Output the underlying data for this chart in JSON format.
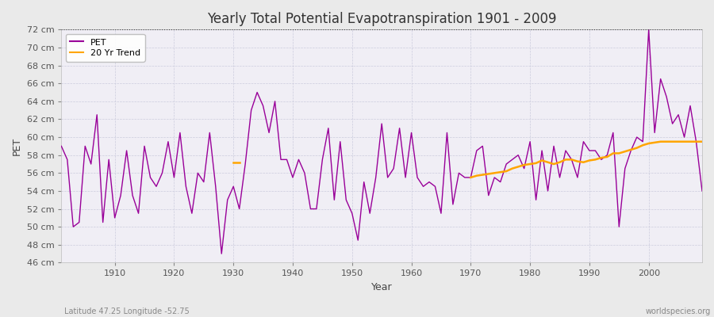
{
  "title": "Yearly Total Potential Evapotranspiration 1901 - 2009",
  "xlabel": "Year",
  "ylabel": "PET",
  "subtitle": "Latitude 47.25 Longitude -52.75",
  "watermark": "worldspecies.org",
  "ylim": [
    46,
    72
  ],
  "ytick_labels": [
    "46 cm",
    "48 cm",
    "50 cm",
    "52 cm",
    "54 cm",
    "56 cm",
    "58 cm",
    "60 cm",
    "62 cm",
    "64 cm",
    "66 cm",
    "68 cm",
    "70 cm",
    "72 cm"
  ],
  "ytick_values": [
    46,
    48,
    50,
    52,
    54,
    56,
    58,
    60,
    62,
    64,
    66,
    68,
    70,
    72
  ],
  "pet_color": "#990099",
  "trend_color": "#FFA500",
  "fig_bg_color": "#EAEAEA",
  "plot_bg_color": "#F0EEF5",
  "grid_color": "#CCCCDD",
  "years": [
    1901,
    1902,
    1903,
    1904,
    1905,
    1906,
    1907,
    1908,
    1909,
    1910,
    1911,
    1912,
    1913,
    1914,
    1915,
    1916,
    1917,
    1918,
    1919,
    1920,
    1921,
    1922,
    1923,
    1924,
    1925,
    1926,
    1927,
    1928,
    1929,
    1930,
    1931,
    1932,
    1933,
    1934,
    1935,
    1936,
    1937,
    1938,
    1939,
    1940,
    1941,
    1942,
    1943,
    1944,
    1945,
    1946,
    1947,
    1948,
    1949,
    1950,
    1951,
    1952,
    1953,
    1954,
    1955,
    1956,
    1957,
    1958,
    1959,
    1960,
    1961,
    1962,
    1963,
    1964,
    1965,
    1966,
    1967,
    1968,
    1969,
    1970,
    1971,
    1972,
    1973,
    1974,
    1975,
    1976,
    1977,
    1978,
    1979,
    1980,
    1981,
    1982,
    1983,
    1984,
    1985,
    1986,
    1987,
    1988,
    1989,
    1990,
    1991,
    1992,
    1993,
    1994,
    1995,
    1996,
    1997,
    1998,
    1999,
    2000,
    2001,
    2002,
    2003,
    2004,
    2005,
    2006,
    2007,
    2008,
    2009
  ],
  "pet_values": [
    59.0,
    57.5,
    50.0,
    50.5,
    59.0,
    57.0,
    62.5,
    50.5,
    57.5,
    51.0,
    53.5,
    58.5,
    53.5,
    51.5,
    59.0,
    55.5,
    54.5,
    56.0,
    59.5,
    55.5,
    60.5,
    54.5,
    51.5,
    56.0,
    55.0,
    60.5,
    54.5,
    47.0,
    53.0,
    54.5,
    52.0,
    57.0,
    63.0,
    65.0,
    63.5,
    60.5,
    64.0,
    57.5,
    57.5,
    55.5,
    57.5,
    56.0,
    52.0,
    52.0,
    57.5,
    61.0,
    53.0,
    59.5,
    53.0,
    51.5,
    48.5,
    55.0,
    51.5,
    55.5,
    61.5,
    55.5,
    56.5,
    61.0,
    55.5,
    60.5,
    55.5,
    54.5,
    55.0,
    54.5,
    51.5,
    60.5,
    52.5,
    56.0,
    55.5,
    55.5,
    58.5,
    59.0,
    53.5,
    55.5,
    55.0,
    57.0,
    57.5,
    58.0,
    56.5,
    59.5,
    53.0,
    58.5,
    54.0,
    59.0,
    55.5,
    58.5,
    57.5,
    55.5,
    59.5,
    58.5,
    58.5,
    57.5,
    58.0,
    60.5,
    50.0,
    56.5,
    58.5,
    60.0,
    59.5,
    72.0,
    60.5,
    66.5,
    64.5,
    61.5,
    62.5,
    60.0,
    63.5,
    59.5,
    54.0
  ],
  "trend_segments": [
    {
      "years": [
        1930,
        1931
      ],
      "values": [
        57.2,
        57.2
      ]
    },
    {
      "years": [
        1970,
        1971,
        1972,
        1973,
        1974,
        1975,
        1976,
        1977,
        1978,
        1979,
        1980,
        1981,
        1982,
        1983,
        1984,
        1985,
        1986,
        1987,
        1988,
        1989,
        1990,
        1991,
        1992,
        1993,
        1994,
        1995,
        1996,
        1997,
        1998,
        1999,
        2000,
        2001,
        2002,
        2003,
        2004,
        2005,
        2006,
        2007,
        2008,
        2009
      ],
      "values": [
        55.5,
        55.7,
        55.8,
        55.9,
        56.0,
        56.1,
        56.2,
        56.5,
        56.7,
        56.9,
        57.0,
        57.1,
        57.4,
        57.2,
        57.0,
        57.2,
        57.5,
        57.5,
        57.3,
        57.2,
        57.4,
        57.5,
        57.7,
        57.8,
        58.2,
        58.2,
        58.4,
        58.6,
        58.8,
        59.1,
        59.3,
        59.4,
        59.5,
        59.5,
        59.5,
        59.5,
        59.5,
        59.5,
        59.5,
        59.5
      ]
    }
  ]
}
